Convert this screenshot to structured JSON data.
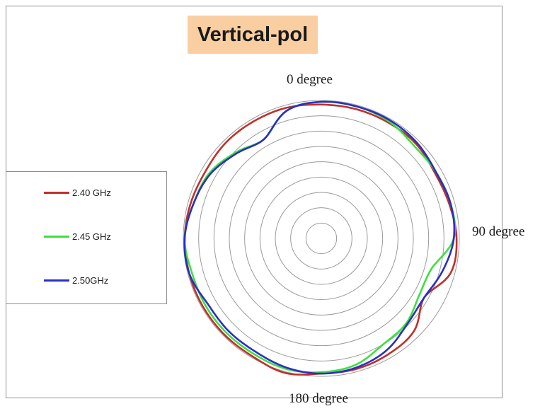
{
  "chart_data": {
    "type": "polar-line",
    "title": "Vertical-pol",
    "angle_labels": [
      {
        "angle_deg": 0,
        "text": "0 degree"
      },
      {
        "angle_deg": 90,
        "text": "90 degree"
      },
      {
        "angle_deg": 180,
        "text": "180 degree"
      }
    ],
    "radial_rings": 9,
    "rmax": 1.0,
    "angles_deg": [
      0,
      15,
      30,
      45,
      60,
      75,
      90,
      105,
      120,
      135,
      150,
      165,
      180,
      195,
      210,
      225,
      240,
      255,
      270,
      285,
      300,
      315,
      330,
      345
    ],
    "series": [
      {
        "name": "2.40 GHz",
        "color": "#c0302a",
        "values": [
          0.97,
          0.97,
          0.97,
          0.97,
          0.95,
          0.96,
          0.98,
          0.97,
          0.86,
          0.95,
          0.97,
          0.98,
          0.98,
          1.01,
          0.99,
          0.99,
          0.99,
          0.99,
          0.99,
          0.98,
          0.97,
          0.98,
          0.98,
          0.98
        ]
      },
      {
        "name": "2.45 GHz",
        "color": "#3fdf3f",
        "values": [
          0.99,
          0.99,
          0.98,
          0.95,
          0.96,
          0.97,
          0.96,
          0.83,
          0.82,
          0.87,
          0.89,
          0.95,
          0.97,
          0.98,
          0.97,
          0.97,
          0.97,
          0.97,
          0.99,
          0.96,
          0.94,
          0.88,
          0.83,
          0.96
        ]
      },
      {
        "name": "2.50GHz",
        "color": "#2a2fc4",
        "values": [
          0.99,
          0.99,
          0.99,
          0.98,
          0.96,
          0.97,
          0.96,
          0.91,
          0.86,
          0.88,
          0.94,
          0.97,
          0.98,
          0.97,
          0.95,
          0.95,
          0.95,
          0.99,
          0.99,
          0.96,
          0.93,
          0.87,
          0.83,
          0.96
        ]
      }
    ]
  }
}
